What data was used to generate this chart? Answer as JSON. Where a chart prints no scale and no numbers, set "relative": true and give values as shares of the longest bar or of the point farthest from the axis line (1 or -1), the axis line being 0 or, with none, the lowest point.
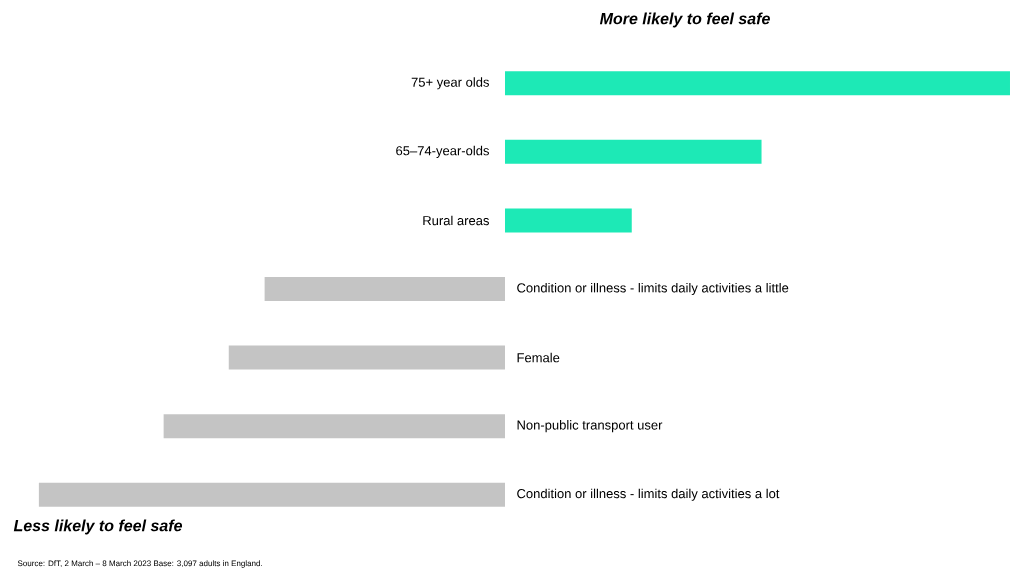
{
  "chart_data": {
    "type": "bar",
    "orientation": "horizontal",
    "relative": true,
    "title": "More likely to feel safe",
    "categories": [
      "75+ year olds",
      "65–74-year-olds",
      "Rural areas",
      "Condition or illness -  limits daily activities a little",
      "Female",
      "Non-public transport user",
      "Condition or illness -  limits daily activities a lot"
    ],
    "values": [
      1,
      0.508,
      0.251,
      -0.476,
      -0.547,
      -0.676,
      -0.923
    ],
    "colors": [
      "#1de9b6",
      "#1de9b6",
      "#1de9b6",
      "#c4c4c4",
      "#c4c4c4",
      "#c4c4c4",
      "#c4c4c4"
    ],
    "annotations": [
      "Less likely to feel safe",
      "Source: DfT, 2 March – 8 March 2023 Base: 3,097 adults in England."
    ]
  }
}
